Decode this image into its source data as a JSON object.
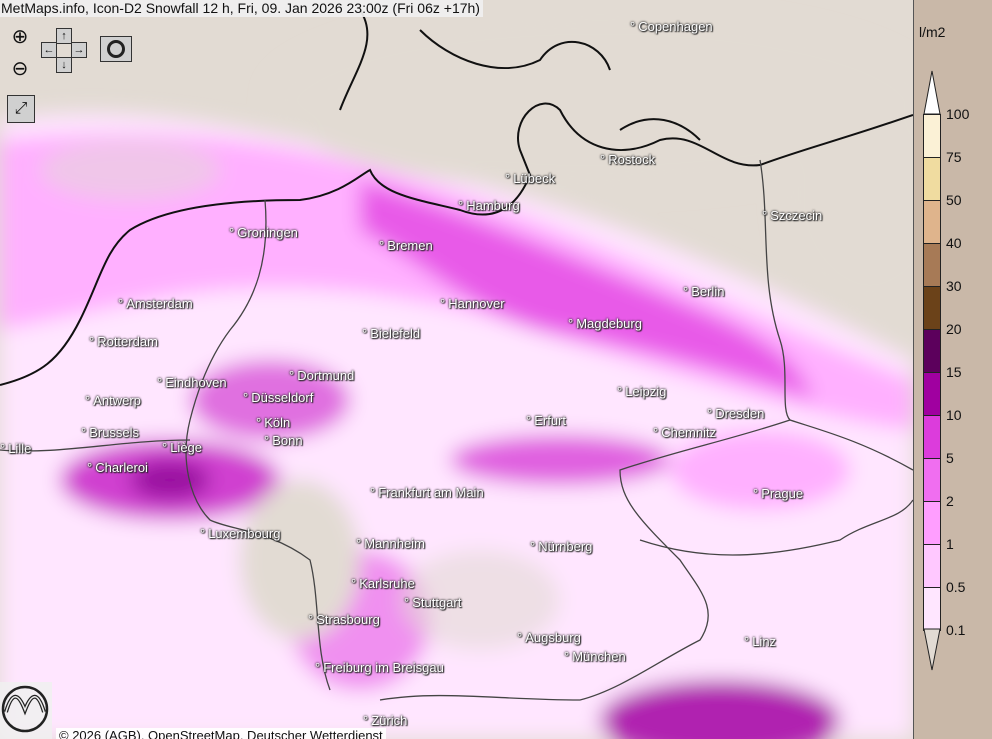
{
  "title": "MetMaps.info, Icon-D2 Snowfall 12 h, Fri, 09. Jan 2026 23:00z (Fri 06z +17h)",
  "attribution": "© 2026 (AGB), OpenStreetMap, Deutscher Wetterdienst",
  "logo_text": "METMAPS",
  "controls": {
    "zoom_in": "zoom-in-icon",
    "zoom_out": "zoom-out-icon",
    "pan": "pan-arrows-icon",
    "snapshot": "camera-icon",
    "fullscreen": "fullscreen-icon",
    "up": "↑",
    "down": "↓",
    "left": "←",
    "right": "→"
  },
  "cities": [
    "Copenhagen",
    "Rostock",
    "Lübeck",
    "Hamburg",
    "Szczecin",
    "Groningen",
    "Bremen",
    "Berlin",
    "Amsterdam",
    "Hannover",
    "Magdeburg",
    "Bielefeld",
    "Rotterdam",
    "Dortmund",
    "Eindhoven",
    "Leipzig",
    "Antwerp",
    "Düsseldorf",
    "Dresden",
    "Erfurt",
    "Köln",
    "Chemnitz",
    "Brussels",
    "Bonn",
    "Lille",
    "Liège",
    "Charleroi",
    "Frankfurt am Main",
    "Prague",
    "Luxembourg",
    "Mannheim",
    "Nürnberg",
    "Karlsruhe",
    "Stuttgart",
    "Strasbourg",
    "Augsburg",
    "Linz",
    "München",
    "Freiburg im Breisgau",
    "Zürich"
  ],
  "legend": {
    "unit": "l/m2",
    "labels": [
      "100",
      "75",
      "50",
      "40",
      "30",
      "20",
      "15",
      "10",
      "5",
      "2",
      "1",
      "0.5",
      "0.1"
    ],
    "colors": [
      "#fbf1d6",
      "#f0dca0",
      "#dfb48c",
      "#a77a56",
      "#6b4219",
      "#5c005c",
      "#a000a0",
      "#dc3cdc",
      "#f06ef0",
      "#ff9eff",
      "#ffc8ff",
      "#ffe6ff"
    ],
    "over_color": "#ffffff",
    "under_color": "#e2dbd3"
  }
}
